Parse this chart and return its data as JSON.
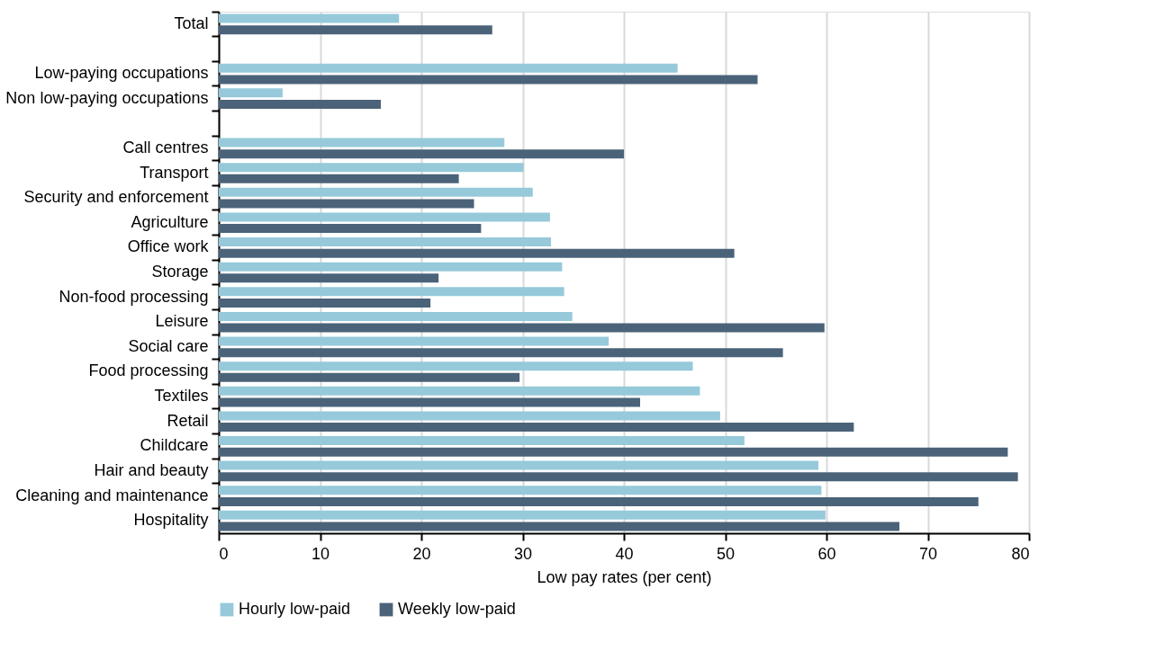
{
  "chart_data": {
    "type": "bar",
    "orientation": "horizontal",
    "xlabel": "Low pay rates (per cent)",
    "categories": [
      "Total",
      null,
      "Low-paying occupations",
      "Non low-paying occupations",
      null,
      "Call centres",
      "Transport",
      "Security and enforcement",
      "Agriculture",
      "Office work",
      "Storage",
      "Non-food processing",
      "Leisure",
      "Social care",
      "Food processing",
      "Textiles",
      "Retail",
      "Childcare",
      "Hair and beauty",
      "Cleaning and maintenance",
      "Hospitality"
    ],
    "series": [
      {
        "name": "Hourly low-paid",
        "color": "#96c9da",
        "values": [
          17.8,
          null,
          45.3,
          6.3,
          null,
          28.2,
          30.1,
          31.0,
          32.7,
          32.8,
          33.9,
          34.1,
          34.9,
          38.5,
          46.8,
          47.5,
          49.5,
          51.9,
          59.2,
          59.5,
          59.9
        ]
      },
      {
        "name": "Weekly low-paid",
        "color": "#4b6379",
        "values": [
          27.0,
          null,
          53.2,
          16.0,
          null,
          40.0,
          23.7,
          25.2,
          25.9,
          50.9,
          21.7,
          20.9,
          59.8,
          55.7,
          29.7,
          41.6,
          62.7,
          77.9,
          78.9,
          75.0,
          67.2
        ]
      }
    ],
    "xlim": [
      0,
      80
    ],
    "xticks": [
      0,
      10,
      20,
      30,
      40,
      50,
      60,
      70,
      80
    ],
    "grid": "x",
    "legend": "bottom"
  }
}
